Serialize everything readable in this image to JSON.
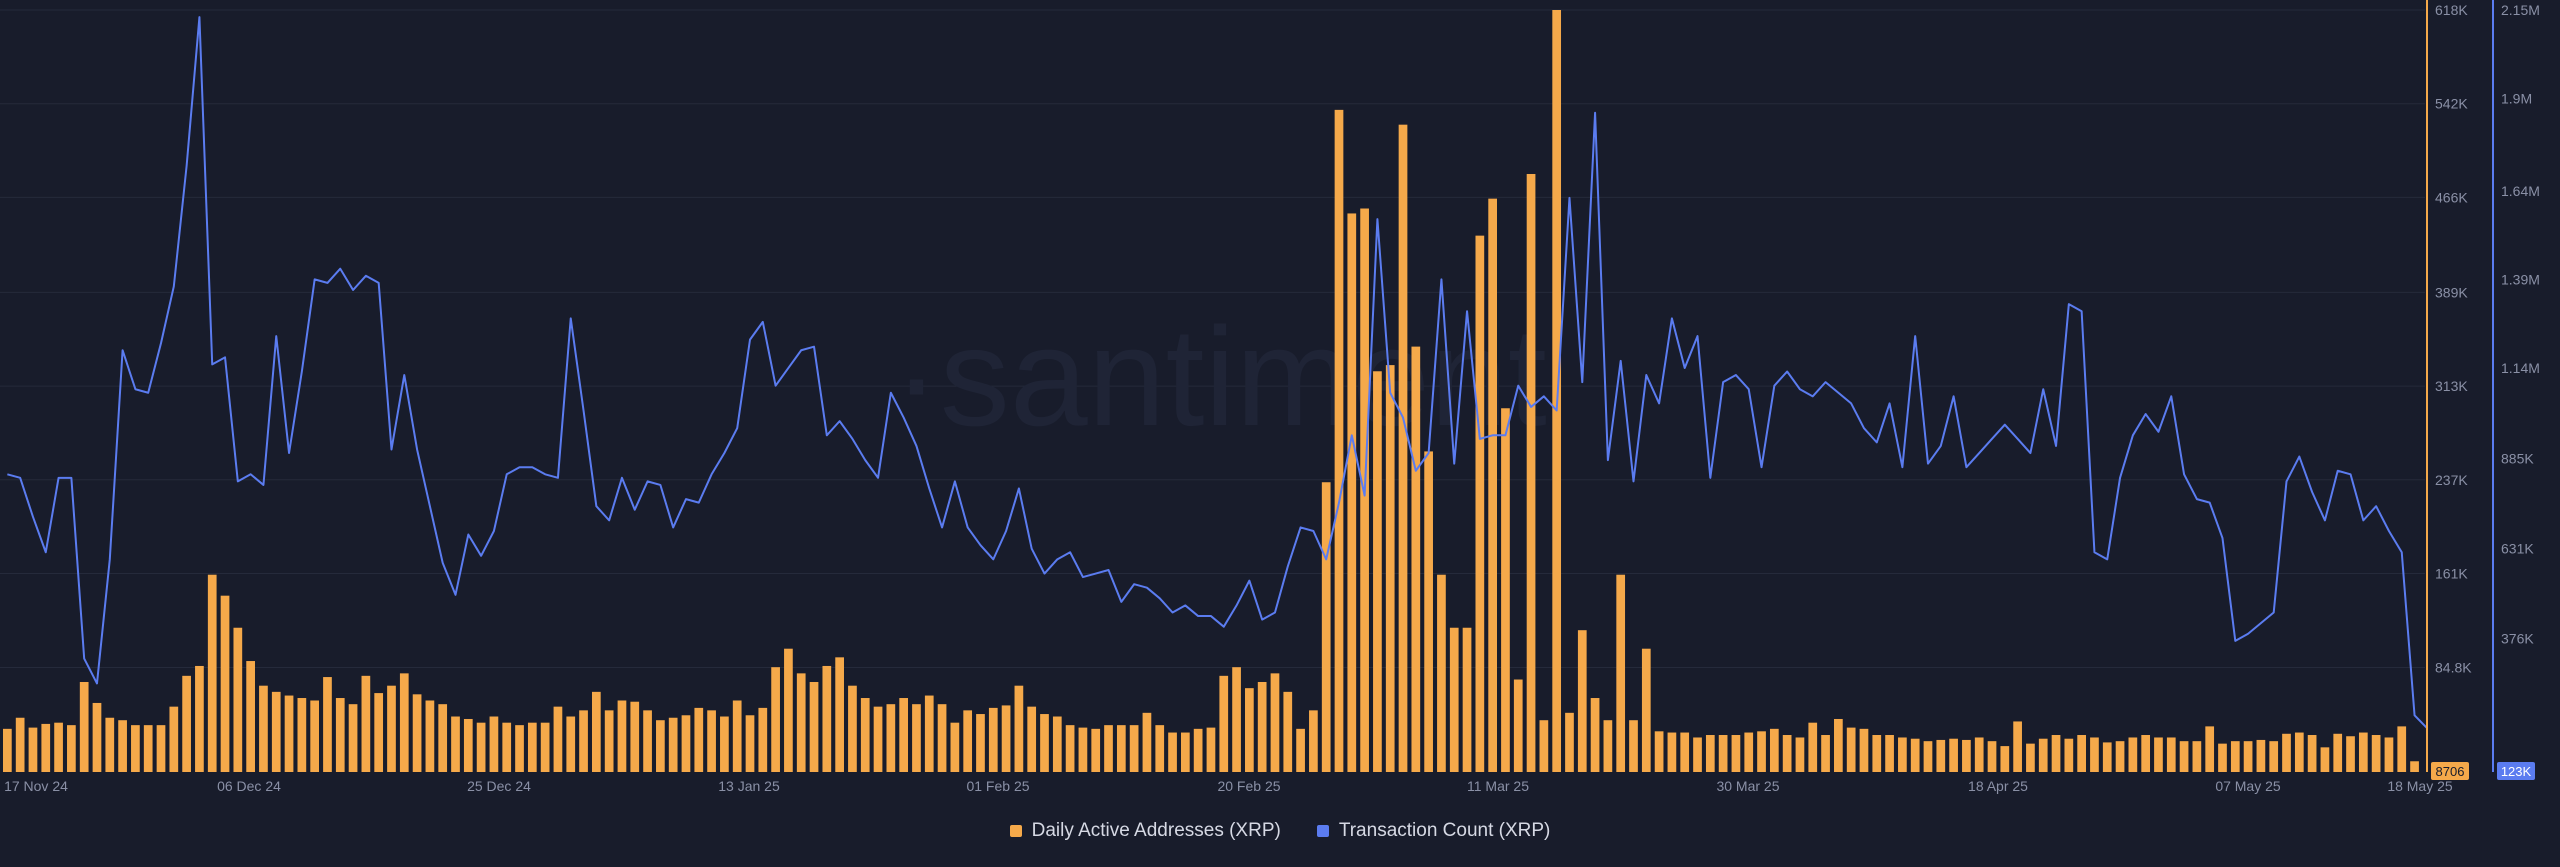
{
  "chart_data": {
    "type": "bar",
    "watermark": "·santiment",
    "x_tick_labels": [
      "17 Nov 24",
      "06 Dec 24",
      "25 Dec 24",
      "13 Jan 25",
      "01 Feb 25",
      "20 Feb 25",
      "11 Mar 25",
      "30 Mar 25",
      "18 Apr 25",
      "07 May 25",
      "18 May 25"
    ],
    "left_axis": {
      "color": "#f5a94a",
      "ticks": [
        "618K",
        "542K",
        "466K",
        "389K",
        "313K",
        "237K",
        "161K",
        "84.8K"
      ],
      "tick_values": [
        618000,
        542000,
        466000,
        389000,
        313000,
        237000,
        161000,
        84800
      ],
      "range": [
        0,
        618000
      ],
      "last_value_label": "8706"
    },
    "right_axis": {
      "color": "#5b7cf0",
      "ticks": [
        "2.15M",
        "1.9M",
        "1.64M",
        "1.39M",
        "1.14M",
        "885K",
        "631K",
        "376K"
      ],
      "tick_values": [
        2150000,
        1900000,
        1640000,
        1390000,
        1140000,
        885000,
        631000,
        376000
      ],
      "range": [
        0,
        2150000
      ],
      "last_value_label": "123K"
    },
    "series": [
      {
        "name": "Daily Active Addresses (XRP)",
        "kind": "bar",
        "color": "#f5a94a",
        "axis": "left",
        "values": [
          35000,
          44000,
          36000,
          39000,
          40000,
          38000,
          73000,
          56000,
          44000,
          42000,
          38000,
          38000,
          38000,
          53000,
          78000,
          86000,
          160000,
          143000,
          117000,
          90000,
          70000,
          65000,
          62000,
          60000,
          58000,
          77000,
          60000,
          55000,
          78000,
          64000,
          70000,
          80000,
          63000,
          58000,
          55000,
          45000,
          43000,
          40000,
          45000,
          40000,
          38000,
          40000,
          40000,
          53000,
          45000,
          50000,
          65000,
          50000,
          58000,
          57000,
          50000,
          42000,
          44000,
          46000,
          52000,
          50000,
          45000,
          58000,
          46000,
          52000,
          85000,
          100000,
          80000,
          73000,
          86000,
          93000,
          70000,
          60000,
          53000,
          55000,
          60000,
          55000,
          62000,
          55000,
          40000,
          50000,
          47000,
          52000,
          54000,
          70000,
          53000,
          47000,
          45000,
          38000,
          36000,
          35000,
          38000,
          38000,
          38000,
          48000,
          38000,
          32000,
          32000,
          35000,
          36000,
          78000,
          85000,
          68000,
          73000,
          80000,
          65000,
          35000,
          50000,
          235000,
          537000,
          453000,
          457000,
          325000,
          330000,
          525000,
          345000,
          260000,
          160000,
          117000,
          117000,
          435000,
          465000,
          295000,
          75000,
          485000,
          42000,
          618000,
          48000,
          115000,
          60000,
          42000,
          160000,
          42000,
          100000,
          33000,
          32000,
          32000,
          28000,
          30000,
          30000,
          30000,
          32000,
          33000,
          35000,
          30000,
          28000,
          40000,
          30000,
          43000,
          36000,
          35000,
          30000,
          30000,
          28000,
          27000,
          25000,
          26000,
          27000,
          26000,
          28000,
          25000,
          21000,
          41000,
          23000,
          27000,
          30000,
          27000,
          30000,
          28000,
          24000,
          25000,
          28000,
          30000,
          28000,
          28000,
          25000,
          25000,
          37000,
          23000,
          25000,
          25000,
          26000,
          25000,
          31000,
          32000,
          30000,
          20000,
          31000,
          29000,
          32000,
          30000,
          28000,
          37000,
          8706
        ]
      },
      {
        "name": "Transaction Count (XRP)",
        "kind": "line",
        "color": "#5b7cf0",
        "axis": "right",
        "values": [
          840000,
          830000,
          720000,
          620000,
          830000,
          830000,
          320000,
          250000,
          600000,
          1190000,
          1080000,
          1070000,
          1210000,
          1370000,
          1710000,
          2130000,
          1150000,
          1170000,
          820000,
          840000,
          810000,
          1230000,
          900000,
          1130000,
          1390000,
          1380000,
          1420000,
          1360000,
          1400000,
          1380000,
          910000,
          1120000,
          910000,
          750000,
          590000,
          500000,
          670000,
          610000,
          680000,
          840000,
          860000,
          860000,
          840000,
          830000,
          1280000,
          1020000,
          750000,
          710000,
          830000,
          740000,
          820000,
          810000,
          690000,
          770000,
          760000,
          840000,
          900000,
          970000,
          1220000,
          1270000,
          1090000,
          1140000,
          1190000,
          1200000,
          950000,
          990000,
          940000,
          880000,
          830000,
          1070000,
          1000000,
          920000,
          800000,
          690000,
          820000,
          690000,
          640000,
          600000,
          680000,
          800000,
          630000,
          560000,
          600000,
          620000,
          550000,
          560000,
          570000,
          480000,
          530000,
          520000,
          490000,
          450000,
          470000,
          440000,
          440000,
          410000,
          470000,
          540000,
          430000,
          450000,
          580000,
          690000,
          680000,
          600000,
          760000,
          950000,
          780000,
          1560000,
          1070000,
          1000000,
          850000,
          900000,
          1390000,
          870000,
          1300000,
          940000,
          950000,
          950000,
          1090000,
          1030000,
          1060000,
          1020000,
          1620000,
          1100000,
          1860000,
          880000,
          1160000,
          820000,
          1120000,
          1040000,
          1280000,
          1140000,
          1230000,
          830000,
          1100000,
          1120000,
          1080000,
          860000,
          1090000,
          1130000,
          1080000,
          1060000,
          1100000,
          1070000,
          1040000,
          970000,
          930000,
          1040000,
          860000,
          1230000,
          870000,
          920000,
          1060000,
          860000,
          900000,
          940000,
          980000,
          940000,
          900000,
          1080000,
          920000,
          1320000,
          1300000,
          620000,
          600000,
          830000,
          950000,
          1010000,
          960000,
          1060000,
          840000,
          770000,
          760000,
          660000,
          370000,
          390000,
          420000,
          450000,
          820000,
          890000,
          790000,
          710000,
          850000,
          840000,
          710000,
          750000,
          680000,
          620000,
          160000,
          123000
        ]
      }
    ]
  },
  "legend": {
    "dau_label": "Daily Active Addresses (XRP)",
    "tx_label": "Transaction Count (XRP)"
  },
  "colors": {
    "background": "#181c2b",
    "bar": "#f5a94a",
    "line": "#5b7cf0",
    "grid": "#252a3b"
  }
}
